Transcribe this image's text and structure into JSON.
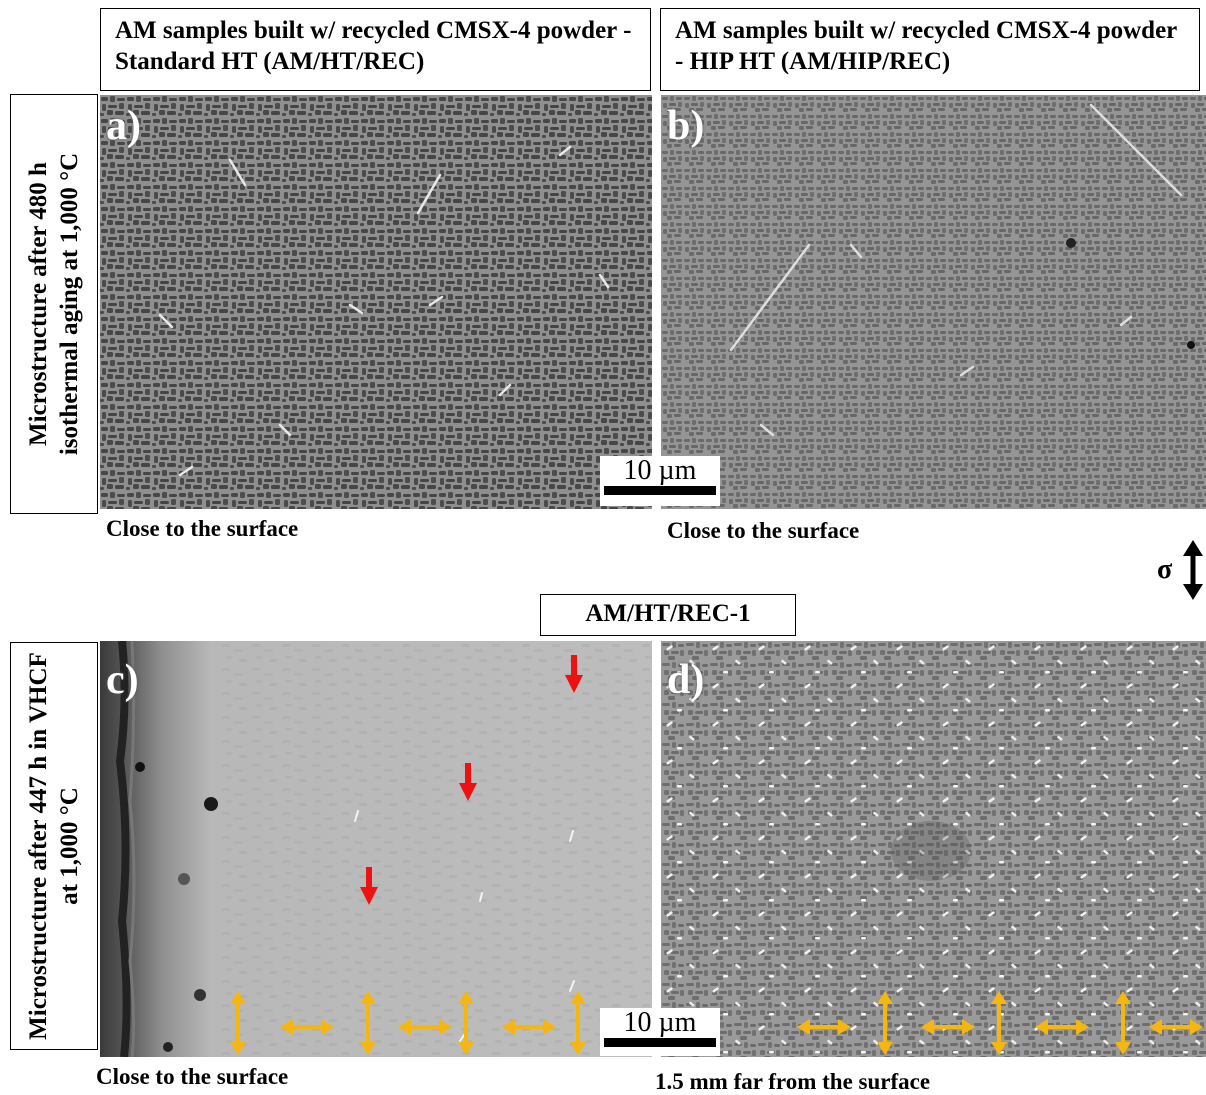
{
  "headers": {
    "top_left": "AM  samples built w/ recycled CMSX-4 powder - Standard HT (AM/HT/REC)",
    "top_right": "AM samples built w/ recycled CMSX-4 powder - HIP HT (AM/HIP/REC)",
    "middle": "AM/HT/REC-1"
  },
  "row_labels": {
    "top": "Microstructure after 480 h isothermal aging at 1,000 °C",
    "bottom": "Microstructure after 447 h in VHCF at 1,000 °C"
  },
  "panels": {
    "a": {
      "label": "a)",
      "caption": "Close to the surface"
    },
    "b": {
      "label": "b)",
      "caption": "Close to the surface"
    },
    "c": {
      "label": "c)",
      "caption": "Close to the surface"
    },
    "d": {
      "label": "d)",
      "caption": "1.5 mm far from the surface"
    }
  },
  "scale_bar": {
    "text": "10 µm"
  },
  "stress_symbol": "σ",
  "colors": {
    "red_arrow": "#ee1111",
    "yellow_arrow": "#f5b70f"
  }
}
